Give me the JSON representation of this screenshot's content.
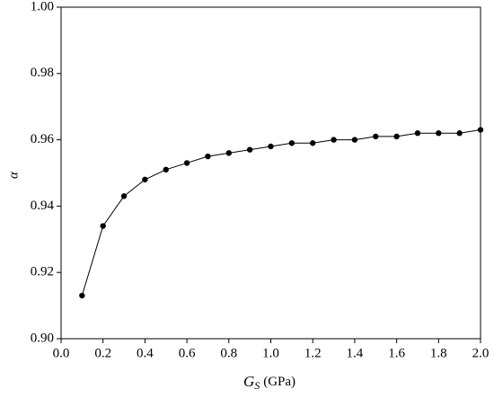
{
  "chart_data": {
    "type": "line",
    "xlabel_symbol": "G",
    "xlabel_subscript": "S",
    "xlabel_unit": "(GPa)",
    "ylabel": "α",
    "x": [
      0.1,
      0.2,
      0.3,
      0.4,
      0.5,
      0.6,
      0.7,
      0.8,
      0.9,
      1.0,
      1.1,
      1.2,
      1.3,
      1.4,
      1.5,
      1.6,
      1.7,
      1.8,
      1.9,
      2.0
    ],
    "series": [
      {
        "color": "#000000",
        "values": [
          0.913,
          0.934,
          0.943,
          0.948,
          0.951,
          0.953,
          0.955,
          0.956,
          0.957,
          0.958,
          0.959,
          0.959,
          0.96,
          0.96,
          0.961,
          0.961,
          0.962,
          0.962,
          0.962,
          0.963
        ]
      }
    ],
    "xlim": [
      0,
      2
    ],
    "xticks": [
      {
        "value": 0,
        "label": "0.0"
      },
      0.2,
      0.4,
      0.6,
      0.8,
      {
        "value": 1,
        "label": "1.0"
      },
      1.2,
      1.4,
      1.6,
      1.8,
      {
        "value": 2,
        "label": "2.0"
      }
    ],
    "ylim": [
      0.9,
      1
    ],
    "yticks": [
      {
        "value": 0.9,
        "label": "0.90"
      },
      0.92,
      0.94,
      0.96,
      0.98,
      {
        "value": 1,
        "label": "1.00"
      }
    ],
    "grid": false
  }
}
